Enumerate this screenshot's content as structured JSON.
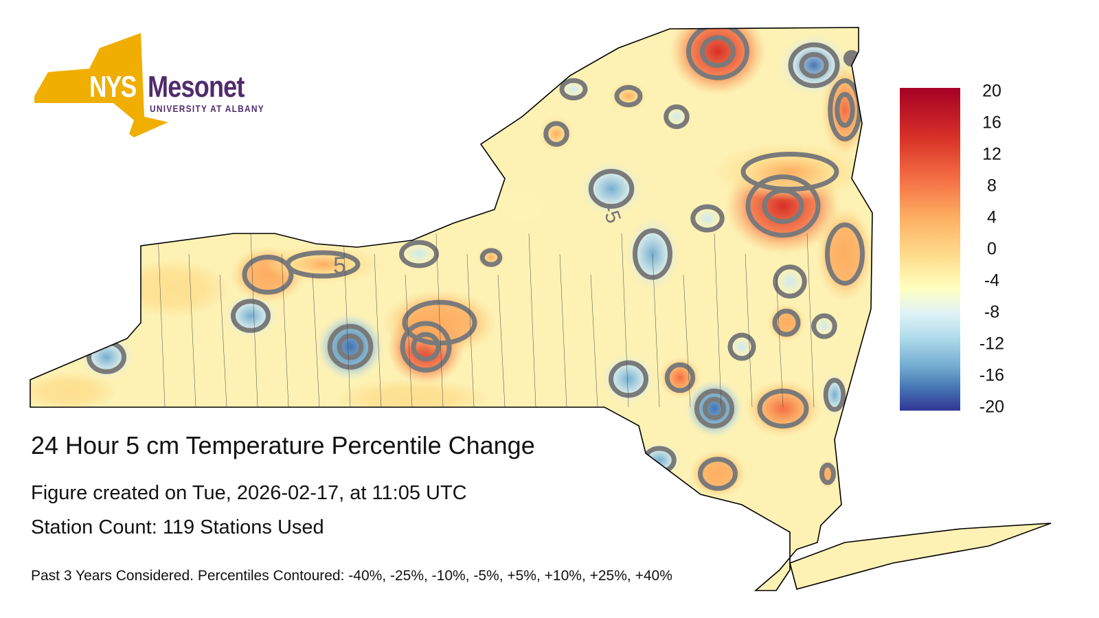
{
  "logo": {
    "nys": "NYS",
    "name": "Mesonet",
    "sub": "UNIVERSITY AT ALBANY",
    "gold": "#efae00",
    "purple": "#512b6e"
  },
  "title": "24 Hour 5 cm Temperature Percentile Change",
  "created": "Figure created on Tue, 2026-02-17, at 11:05 UTC",
  "station_count": "Station Count: 119 Stations Used",
  "note": "Past 3 Years Considered. Percentiles Contoured: -40%, -25%, -10%, -5%, +5%, +10%, +25%, +40%",
  "contour_labels": [
    "5",
    "-5"
  ],
  "colorbar": {
    "ticks": [
      "20",
      "16",
      "12",
      "8",
      "4",
      "0",
      "-4",
      "-8",
      "-12",
      "-16",
      "-20"
    ],
    "min": -20,
    "max": 20
  }
}
